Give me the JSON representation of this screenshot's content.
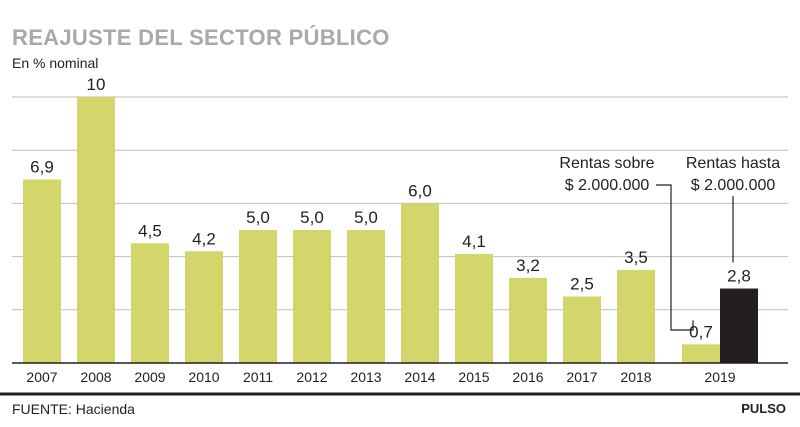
{
  "title": "REAJUSTE DEL SECTOR PÚBLICO",
  "subtitle": "En % nominal",
  "source": "FUENTE: Hacienda",
  "brand": "PULSO",
  "colors": {
    "bar": "#d4d56a",
    "bar_dark": "#231f20",
    "grid": "#bcbec0",
    "axis": "#231f20"
  },
  "chart_data": {
    "type": "bar",
    "ylim": [
      0,
      10
    ],
    "yticks": [
      2,
      4,
      6,
      8,
      10
    ],
    "grid": true,
    "categories": [
      "2007",
      "2008",
      "2009",
      "2010",
      "2011",
      "2012",
      "2013",
      "2014",
      "2015",
      "2016",
      "2017",
      "2018",
      "2019"
    ],
    "series": [
      {
        "values": [
          6.9,
          10,
          4.5,
          4.2,
          5.0,
          5.0,
          5.0,
          6.0,
          4.1,
          3.2,
          2.5,
          3.5,
          0.7
        ],
        "labels": [
          "6,9",
          "10",
          "4,5",
          "4,2",
          "5,0",
          "5,0",
          "5,0",
          "6,0",
          "4,1",
          "3,2",
          "2,5",
          "3,5",
          "0,7"
        ]
      },
      {
        "values": [
          null,
          null,
          null,
          null,
          null,
          null,
          null,
          null,
          null,
          null,
          null,
          null,
          2.8
        ],
        "labels": [
          "",
          "",
          "",
          "",
          "",
          "",
          "",
          "",
          "",
          "",
          "",
          "",
          "2,8"
        ]
      }
    ],
    "annotations": [
      {
        "lines": [
          "Rentas sobre",
          "$ 2.000.000"
        ],
        "series": 0,
        "category": "2019"
      },
      {
        "lines": [
          "Rentas hasta",
          "$ 2.000.000"
        ],
        "series": 1,
        "category": "2019"
      }
    ]
  }
}
